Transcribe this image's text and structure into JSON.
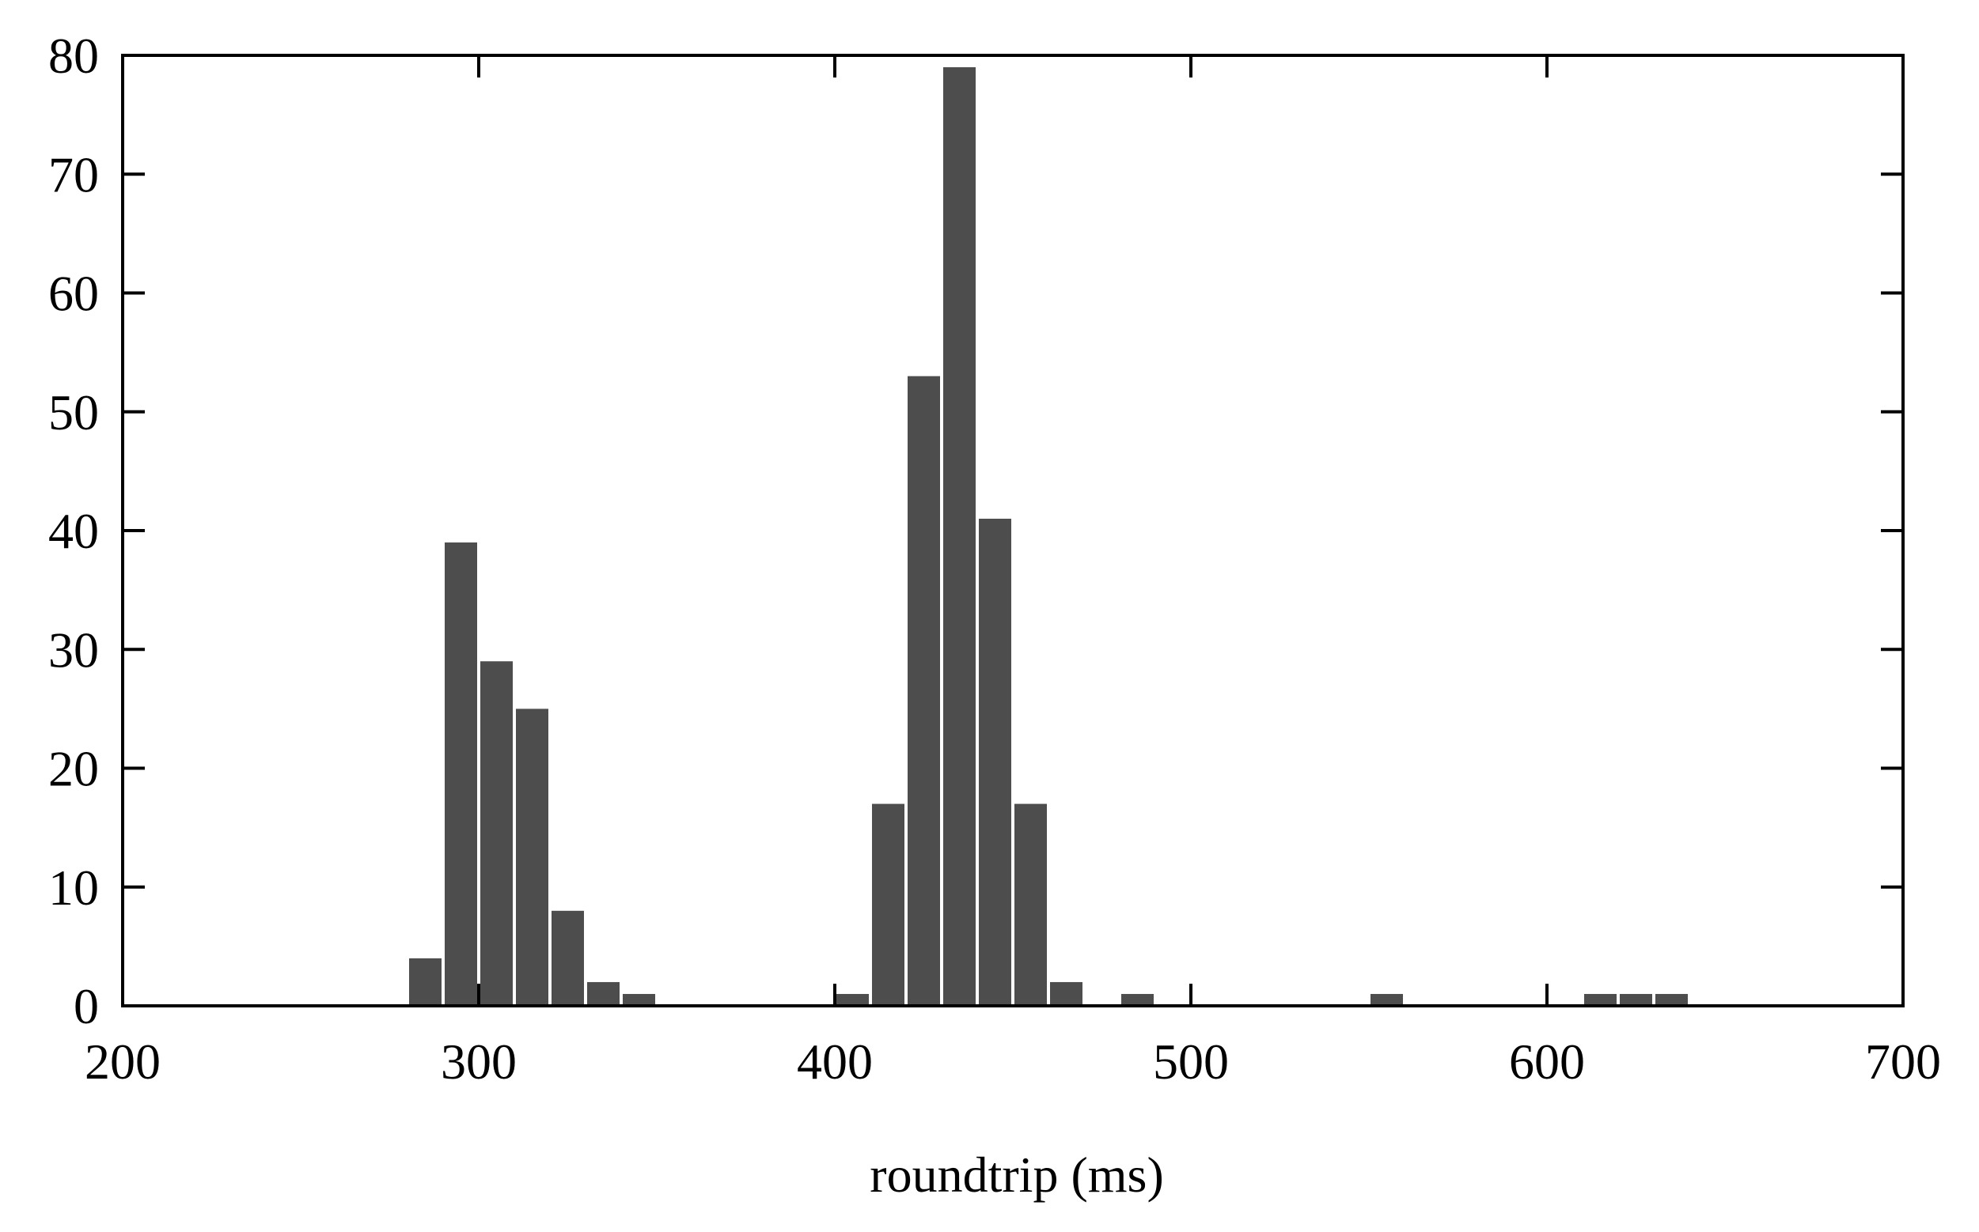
{
  "chart_data": {
    "type": "bar",
    "histogram": true,
    "xlabel": "roundtrip (ms)",
    "ylabel": "",
    "title": "",
    "xlim": [
      200,
      700
    ],
    "ylim": [
      0,
      80
    ],
    "bin_width": 10,
    "xticks": [
      200,
      300,
      400,
      500,
      600,
      700
    ],
    "yticks": [
      0,
      10,
      20,
      30,
      40,
      50,
      60,
      70,
      80
    ],
    "bar_color": "#4d4d4d",
    "grid": false,
    "legend": "none",
    "series": [
      {
        "bins": [
          {
            "x": 280,
            "value": 4
          },
          {
            "x": 290,
            "value": 39
          },
          {
            "x": 300,
            "value": 29
          },
          {
            "x": 310,
            "value": 25
          },
          {
            "x": 320,
            "value": 8
          },
          {
            "x": 330,
            "value": 2
          },
          {
            "x": 340,
            "value": 1
          },
          {
            "x": 400,
            "value": 1
          },
          {
            "x": 410,
            "value": 17
          },
          {
            "x": 420,
            "value": 53
          },
          {
            "x": 430,
            "value": 79
          },
          {
            "x": 440,
            "value": 41
          },
          {
            "x": 450,
            "value": 17
          },
          {
            "x": 460,
            "value": 2
          },
          {
            "x": 480,
            "value": 1
          },
          {
            "x": 550,
            "value": 1
          },
          {
            "x": 610,
            "value": 1
          },
          {
            "x": 620,
            "value": 1
          },
          {
            "x": 630,
            "value": 1
          }
        ]
      }
    ]
  }
}
